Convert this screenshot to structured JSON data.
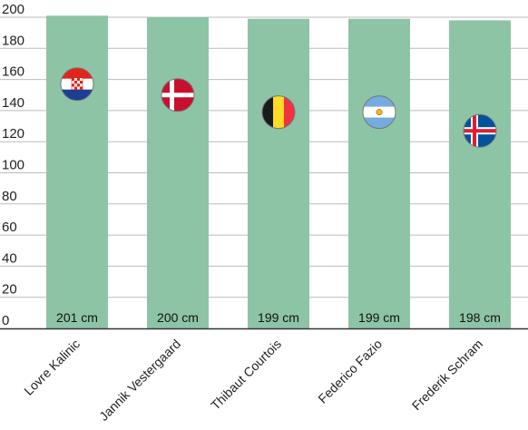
{
  "chart_data": {
    "type": "bar",
    "categories": [
      "Lovre Kalinic",
      "Jannik Vestergaard",
      "Thibaut Courtois",
      "Federico Fazio",
      "Frederik Schram"
    ],
    "values": [
      201,
      200,
      199,
      199,
      198
    ],
    "value_labels": [
      "201 cm",
      "200 cm",
      "199 cm",
      "199 cm",
      "198 cm"
    ],
    "flags": [
      "croatia-flag-icon",
      "denmark-flag-icon",
      "belgium-flag-icon",
      "argentina-flag-icon",
      "iceland-flag-icon"
    ],
    "marker_values": [
      157,
      150,
      139,
      139,
      127
    ],
    "yticks": [
      0,
      20,
      40,
      60,
      80,
      100,
      120,
      140,
      160,
      180,
      200
    ],
    "ylim": [
      0,
      200
    ],
    "grid": true,
    "bar_color": "#8dc4a6",
    "grid_color": "#bbbbbb",
    "title": "",
    "xlabel": "",
    "ylabel": ""
  }
}
